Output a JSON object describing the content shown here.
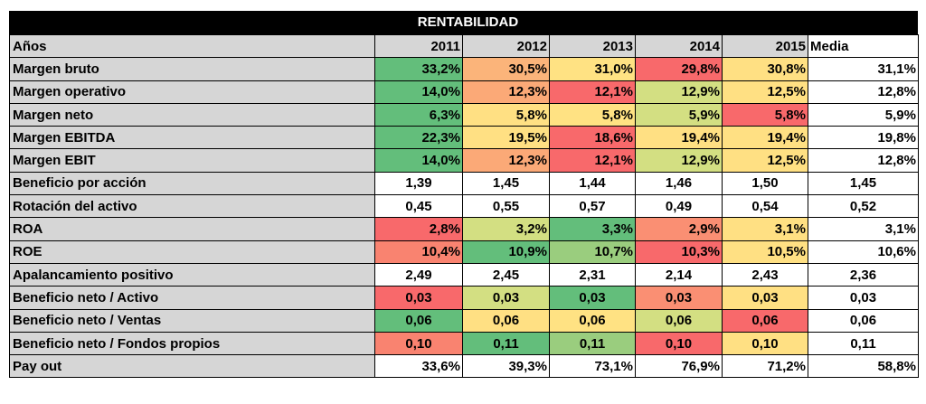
{
  "title": "RENTABILIDAD",
  "header": [
    "Años",
    "2011",
    "2012",
    "2013",
    "2014",
    "2015",
    "Media"
  ],
  "rows": [
    {
      "label": "Margen bruto",
      "cells": [
        {
          "v": "33,2%",
          "c": "#63be7b"
        },
        {
          "v": "30,5%",
          "c": "#fbb47a"
        },
        {
          "v": "31,0%",
          "c": "#ffe283"
        },
        {
          "v": "29,8%",
          "c": "#f8696b"
        },
        {
          "v": "30,8%",
          "c": "#ffe083"
        }
      ],
      "media": "31,1%",
      "align": "right"
    },
    {
      "label": "Margen operativo",
      "cells": [
        {
          "v": "14,0%",
          "c": "#63be7b"
        },
        {
          "v": "12,3%",
          "c": "#fba977"
        },
        {
          "v": "12,1%",
          "c": "#f8696b"
        },
        {
          "v": "12,9%",
          "c": "#d3df82"
        },
        {
          "v": "12,5%",
          "c": "#ffe083"
        }
      ],
      "media": "12,8%",
      "align": "right"
    },
    {
      "label": "Margen neto",
      "cells": [
        {
          "v": "6,3%",
          "c": "#63be7b"
        },
        {
          "v": "5,8%",
          "c": "#ffe083"
        },
        {
          "v": "5,8%",
          "c": "#ffe283"
        },
        {
          "v": "5,9%",
          "c": "#d3df82"
        },
        {
          "v": "5,8%",
          "c": "#f8696b"
        }
      ],
      "media": "5,9%",
      "align": "right"
    },
    {
      "label": "Margen EBITDA",
      "cells": [
        {
          "v": "22,3%",
          "c": "#63be7b"
        },
        {
          "v": "19,5%",
          "c": "#ffe083"
        },
        {
          "v": "18,6%",
          "c": "#f8696b"
        },
        {
          "v": "19,4%",
          "c": "#ffe083"
        },
        {
          "v": "19,4%",
          "c": "#ffe083"
        }
      ],
      "media": "19,8%",
      "align": "right"
    },
    {
      "label": "Margen EBIT",
      "cells": [
        {
          "v": "14,0%",
          "c": "#63be7b"
        },
        {
          "v": "12,3%",
          "c": "#fba977"
        },
        {
          "v": "12,1%",
          "c": "#f8696b"
        },
        {
          "v": "12,9%",
          "c": "#d3df82"
        },
        {
          "v": "12,5%",
          "c": "#ffe083"
        }
      ],
      "media": "12,8%",
      "align": "right"
    },
    {
      "label": "Beneficio por acción",
      "cells": [
        {
          "v": "1,39",
          "c": "#ffffff"
        },
        {
          "v": "1,45",
          "c": "#ffffff"
        },
        {
          "v": "1,44",
          "c": "#ffffff"
        },
        {
          "v": "1,46",
          "c": "#ffffff"
        },
        {
          "v": "1,50",
          "c": "#ffffff"
        }
      ],
      "media": "1,45",
      "align": "center"
    },
    {
      "label": "Rotación del activo",
      "cells": [
        {
          "v": "0,45",
          "c": "#ffffff"
        },
        {
          "v": "0,55",
          "c": "#ffffff"
        },
        {
          "v": "0,57",
          "c": "#ffffff"
        },
        {
          "v": "0,49",
          "c": "#ffffff"
        },
        {
          "v": "0,54",
          "c": "#ffffff"
        }
      ],
      "media": "0,52",
      "align": "center"
    },
    {
      "label": "ROA",
      "cells": [
        {
          "v": "2,8%",
          "c": "#f8696b"
        },
        {
          "v": "3,2%",
          "c": "#d3df82"
        },
        {
          "v": "3,3%",
          "c": "#63be7b"
        },
        {
          "v": "2,9%",
          "c": "#fa8f73"
        },
        {
          "v": "3,1%",
          "c": "#ffe083"
        }
      ],
      "media": "3,1%",
      "align": "right"
    },
    {
      "label": "ROE",
      "cells": [
        {
          "v": "10,4%",
          "c": "#f98370"
        },
        {
          "v": "10,9%",
          "c": "#63be7b"
        },
        {
          "v": "10,7%",
          "c": "#9acd7e"
        },
        {
          "v": "10,3%",
          "c": "#f8696b"
        },
        {
          "v": "10,5%",
          "c": "#ffe083"
        }
      ],
      "media": "10,6%",
      "align": "right"
    },
    {
      "label": "Apalancamiento positivo",
      "cells": [
        {
          "v": "2,49",
          "c": "#ffffff"
        },
        {
          "v": "2,45",
          "c": "#ffffff"
        },
        {
          "v": "2,31",
          "c": "#ffffff"
        },
        {
          "v": "2,14",
          "c": "#ffffff"
        },
        {
          "v": "2,43",
          "c": "#ffffff"
        }
      ],
      "media": "2,36",
      "align": "center"
    },
    {
      "label": "Beneficio neto / Activo",
      "cells": [
        {
          "v": "0,03",
          "c": "#f8696b"
        },
        {
          "v": "0,03",
          "c": "#d3df82"
        },
        {
          "v": "0,03",
          "c": "#63be7b"
        },
        {
          "v": "0,03",
          "c": "#fa8f73"
        },
        {
          "v": "0,03",
          "c": "#ffe083"
        }
      ],
      "media": "0,03",
      "align": "center"
    },
    {
      "label": "Beneficio neto / Ventas",
      "cells": [
        {
          "v": "0,06",
          "c": "#63be7b"
        },
        {
          "v": "0,06",
          "c": "#ffe083"
        },
        {
          "v": "0,06",
          "c": "#ffe283"
        },
        {
          "v": "0,06",
          "c": "#d3df82"
        },
        {
          "v": "0,06",
          "c": "#f8696b"
        }
      ],
      "media": "0,06",
      "align": "center"
    },
    {
      "label": "Beneficio neto / Fondos propios",
      "cells": [
        {
          "v": "0,10",
          "c": "#f98370"
        },
        {
          "v": "0,11",
          "c": "#63be7b"
        },
        {
          "v": "0,11",
          "c": "#9acd7e"
        },
        {
          "v": "0,10",
          "c": "#f8696b"
        },
        {
          "v": "0,10",
          "c": "#ffe083"
        }
      ],
      "media": "0,11",
      "align": "center"
    },
    {
      "label": "Pay out",
      "cells": [
        {
          "v": "33,6%",
          "c": "#ffffff"
        },
        {
          "v": "39,3%",
          "c": "#ffffff"
        },
        {
          "v": "73,1%",
          "c": "#ffffff"
        },
        {
          "v": "76,9%",
          "c": "#ffffff"
        },
        {
          "v": "71,2%",
          "c": "#ffffff"
        }
      ],
      "media": "58,8%",
      "align": "right"
    }
  ]
}
